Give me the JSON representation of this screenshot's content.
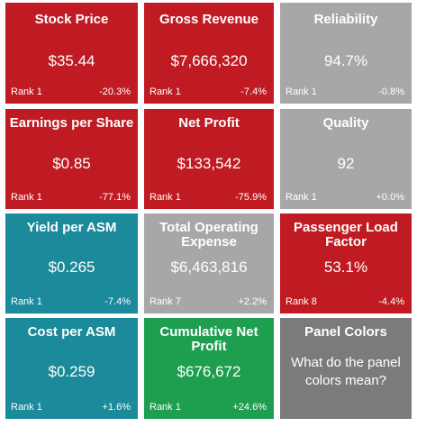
{
  "colors": {
    "red": "#c01b23",
    "gray": "#a7a7a7",
    "teal": "#1b8a9b",
    "green": "#1e9e4f",
    "dark_gray": "#7b7b7b"
  },
  "tiles": [
    {
      "title": "Stock Price",
      "value": "$35.44",
      "rank": "Rank 1",
      "change": "-20.3%",
      "color": "red"
    },
    {
      "title": "Gross Revenue",
      "value": "$7,666,320",
      "rank": "Rank 1",
      "change": "-7.4%",
      "color": "red"
    },
    {
      "title": "Reliability",
      "value": "94.7%",
      "rank": "Rank 1",
      "change": "-0.8%",
      "color": "gray"
    },
    {
      "title": "Earnings per Share",
      "value": "$0.85",
      "rank": "Rank 1",
      "change": "-77.1%",
      "color": "red"
    },
    {
      "title": "Net Profit",
      "value": "$133,542",
      "rank": "Rank 1",
      "change": "-75.9%",
      "color": "red"
    },
    {
      "title": "Quality",
      "value": "92",
      "rank": "Rank 1",
      "change": "+0.0%",
      "color": "gray"
    },
    {
      "title": "Yield per ASM",
      "value": "$0.265",
      "rank": "Rank 1",
      "change": "-7.4%",
      "color": "teal"
    },
    {
      "title": "Total Operating Expense",
      "value": "$6,463,816",
      "rank": "Rank 7",
      "change": "+2.2%",
      "color": "gray"
    },
    {
      "title": "Passenger Load Factor",
      "value": "53.1%",
      "rank": "Rank 8",
      "change": "-4.4%",
      "color": "red"
    },
    {
      "title": "Cost per ASM",
      "value": "$0.259",
      "rank": "Rank 1",
      "change": "+1.6%",
      "color": "teal"
    },
    {
      "title": "Cumulative Net Profit",
      "value": "$676,672",
      "rank": "Rank 1",
      "change": "+24.6%",
      "color": "green"
    }
  ],
  "info_panel": {
    "title": "Panel Colors",
    "text": "What do the panel colors mean?",
    "color": "dark_gray"
  }
}
